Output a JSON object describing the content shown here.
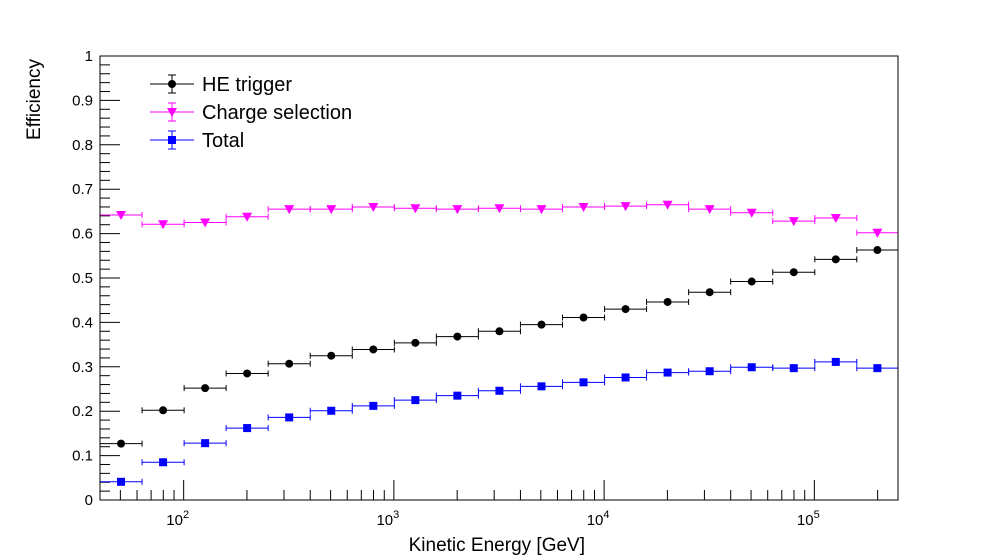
{
  "chart_data": {
    "type": "scatter",
    "title": "",
    "xlabel": "Kinetic Energy [GeV]",
    "ylabel": "Efficiency",
    "xscale": "log",
    "xlim": [
      40,
      250000
    ],
    "ylim": [
      0,
      1
    ],
    "y_ticks": [
      "0",
      "0.1",
      "0.2",
      "0.3",
      "0.4",
      "0.5",
      "0.6",
      "0.7",
      "0.8",
      "0.9",
      "1"
    ],
    "x_tick_labels": [
      {
        "base": "10",
        "exp": "2"
      },
      {
        "base": "10",
        "exp": "3"
      },
      {
        "base": "10",
        "exp": "4"
      },
      {
        "base": "10",
        "exp": "5"
      }
    ],
    "legend_position": "top-left",
    "bin_edges": [
      40,
      63.4,
      100.5,
      159.2,
      252.3,
      400,
      634,
      1005,
      1592,
      2523,
      4000,
      6340,
      10050,
      15920,
      25230,
      40000,
      63400,
      100500,
      159200,
      250000
    ],
    "series": [
      {
        "name": "HE trigger",
        "color": "#000000",
        "marker": "circle",
        "values": [
          0.127,
          0.202,
          0.252,
          0.285,
          0.307,
          0.325,
          0.339,
          0.354,
          0.368,
          0.38,
          0.395,
          0.411,
          0.43,
          0.446,
          0.468,
          0.492,
          0.513,
          0.542,
          0.563
        ]
      },
      {
        "name": "Charge selection",
        "color": "#ff00ff",
        "marker": "triangle-down",
        "values": [
          0.642,
          0.621,
          0.625,
          0.638,
          0.655,
          0.655,
          0.66,
          0.657,
          0.655,
          0.657,
          0.655,
          0.66,
          0.662,
          0.665,
          0.655,
          0.647,
          0.628,
          0.635,
          0.602
        ]
      },
      {
        "name": "Total",
        "color": "#0000ff",
        "marker": "square",
        "values": [
          0.041,
          0.085,
          0.128,
          0.162,
          0.186,
          0.201,
          0.212,
          0.225,
          0.235,
          0.246,
          0.256,
          0.265,
          0.276,
          0.287,
          0.29,
          0.299,
          0.297,
          0.311,
          0.297
        ]
      }
    ]
  }
}
